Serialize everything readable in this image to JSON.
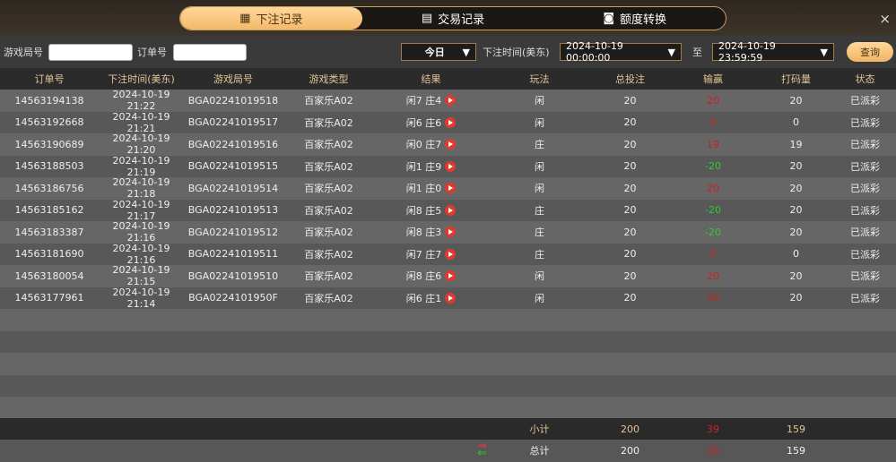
{
  "tabs": [
    {
      "label": "下注记录",
      "icon": "calendar-icon",
      "active": true
    },
    {
      "label": "交易记录",
      "icon": "clipboard-icon"
    },
    {
      "label": "额度转换",
      "icon": "coins-icon"
    }
  ],
  "close": "×",
  "filters": {
    "game_round_label": "游戏局号",
    "game_round_value": "",
    "order_label": "订单号",
    "order_value": "",
    "date_preset": "今日",
    "time_label": "下注时间(美东)",
    "start": "2024-10-19 00:00:00",
    "to": "至",
    "end": "2024-10-19 23:59:59",
    "query": "查询"
  },
  "columns": [
    "订单号",
    "下注时间(美东)",
    "游戏局号",
    "游戏类型",
    "结果",
    "玩法",
    "总投注",
    "输赢",
    "打码量",
    "状态"
  ],
  "rows": [
    [
      "14563194138",
      "2024-10-19 21:22",
      "BGA02241019518",
      "百家乐A02",
      "闲7 庄4",
      "闲",
      "20",
      "20",
      "20",
      "已派彩"
    ],
    [
      "14563192668",
      "2024-10-19 21:21",
      "BGA02241019517",
      "百家乐A02",
      "闲6 庄6",
      "闲",
      "20",
      "0",
      "0",
      "已派彩"
    ],
    [
      "14563190689",
      "2024-10-19 21:20",
      "BGA02241019516",
      "百家乐A02",
      "闲0 庄7",
      "庄",
      "20",
      "19",
      "19",
      "已派彩"
    ],
    [
      "14563188503",
      "2024-10-19 21:19",
      "BGA02241019515",
      "百家乐A02",
      "闲1 庄9",
      "闲",
      "20",
      "-20",
      "20",
      "已派彩"
    ],
    [
      "14563186756",
      "2024-10-19 21:18",
      "BGA02241019514",
      "百家乐A02",
      "闲1 庄0",
      "闲",
      "20",
      "20",
      "20",
      "已派彩"
    ],
    [
      "14563185162",
      "2024-10-19 21:17",
      "BGA02241019513",
      "百家乐A02",
      "闲8 庄5",
      "庄",
      "20",
      "-20",
      "20",
      "已派彩"
    ],
    [
      "14563183387",
      "2024-10-19 21:16",
      "BGA02241019512",
      "百家乐A02",
      "闲8 庄3",
      "庄",
      "20",
      "-20",
      "20",
      "已派彩"
    ],
    [
      "14563181690",
      "2024-10-19 21:16",
      "BGA02241019511",
      "百家乐A02",
      "闲7 庄7",
      "庄",
      "20",
      "0",
      "0",
      "已派彩"
    ],
    [
      "14563180054",
      "2024-10-19 21:15",
      "BGA02241019510",
      "百家乐A02",
      "闲8 庄6",
      "闲",
      "20",
      "20",
      "20",
      "已派彩"
    ],
    [
      "14563177961",
      "2024-10-19 21:14",
      "BGA0224101950F",
      "百家乐A02",
      "闲6 庄1",
      "闲",
      "20",
      "20",
      "20",
      "已派彩"
    ]
  ],
  "subtotal": {
    "label": "小计",
    "bet": "200",
    "winloss": "39",
    "turnover": "159"
  },
  "total": {
    "label": "总计",
    "bet": "200",
    "winloss": "39",
    "turnover": "159",
    "icon": "refresh-arrows-icon"
  },
  "colors": {
    "accent": "#f3b96a",
    "win": "#d02020",
    "loss": "#2ecc2e"
  }
}
